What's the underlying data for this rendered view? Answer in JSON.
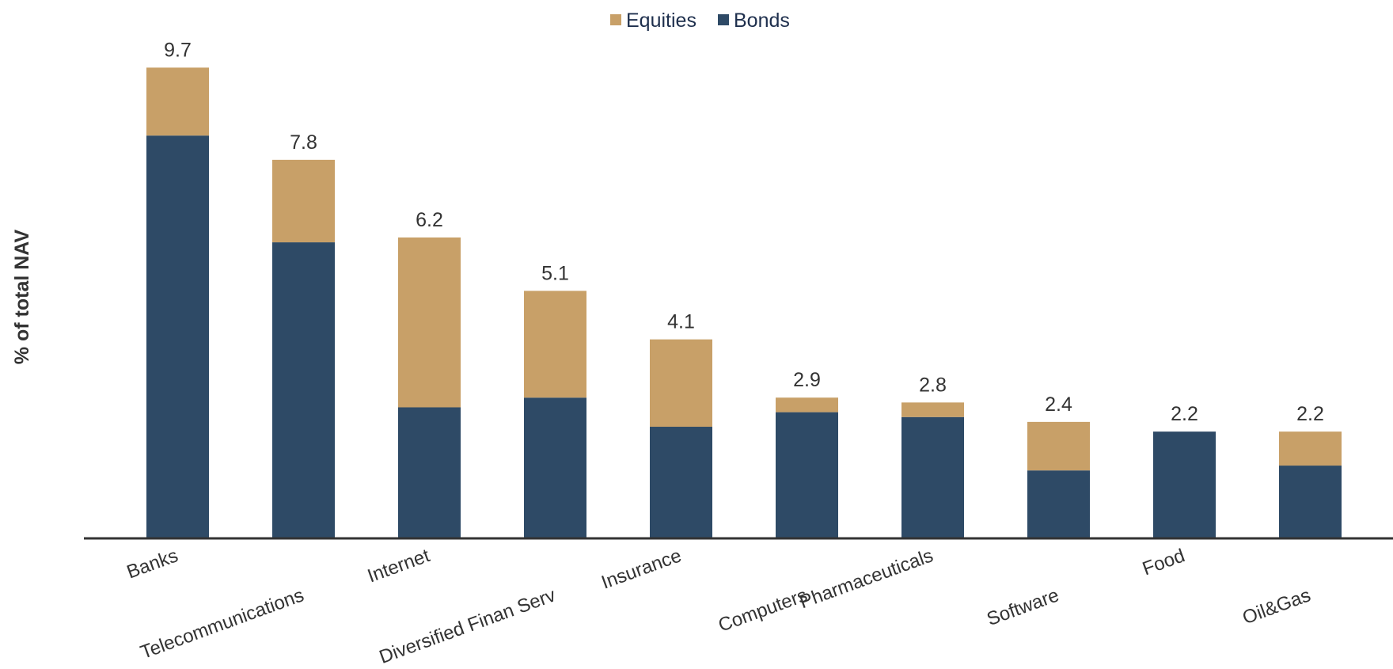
{
  "chart_data": {
    "type": "bar",
    "stacked": true,
    "title": "",
    "xlabel": "",
    "ylabel": "% of total NAV",
    "categories": [
      "Banks",
      "Telecommunications",
      "Internet",
      "Diversified Finan Serv",
      "Insurance",
      "Computers",
      "Pharmaceuticals",
      "Software",
      "Food",
      "Oil&Gas"
    ],
    "series": [
      {
        "name": "Bonds",
        "color": "#2e4a66",
        "values": [
          8.3,
          6.1,
          2.7,
          2.9,
          2.3,
          2.6,
          2.5,
          1.4,
          2.2,
          1.5
        ]
      },
      {
        "name": "Equities",
        "color": "#c8a068",
        "values": [
          1.4,
          1.7,
          3.5,
          2.2,
          1.8,
          0.3,
          0.3,
          1.0,
          0.0,
          0.7
        ]
      }
    ],
    "totals": [
      "9.7",
      "7.8",
      "6.2",
      "5.1",
      "4.1",
      "2.9",
      "2.8",
      "2.4",
      "2.2",
      "2.2"
    ],
    "legend": {
      "position": "top",
      "order": [
        "Equities",
        "Bonds"
      ]
    },
    "ylim": [
      0,
      10
    ],
    "grid": false
  }
}
